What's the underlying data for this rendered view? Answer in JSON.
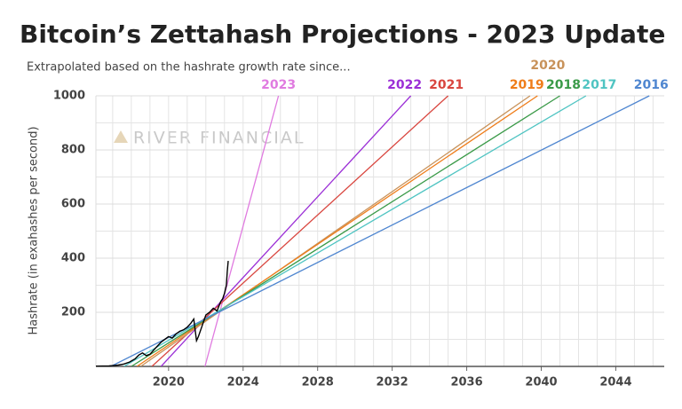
{
  "chart_data": {
    "type": "line",
    "title": "Bitcoin’s Zettahash Projections - 2023 Update",
    "subtitle": "Extrapolated based on the hashrate growth rate since...",
    "y_label": "Hashrate (in exahashes per second)",
    "watermark": "RIVER FINANCIAL",
    "xlim": [
      2016.1,
      2046.6
    ],
    "xticks": [
      2020,
      2024,
      2028,
      2032,
      2036,
      2040,
      2044
    ],
    "ylim": [
      0,
      1000
    ],
    "yticks": [
      200,
      400,
      600,
      800,
      1000
    ],
    "grid": true,
    "minor_grid": {
      "x": 1,
      "y": 100
    },
    "series": [
      {
        "name": "2023",
        "color": "#e07be0",
        "x": [
          2021.95,
          2025.9
        ],
        "values": [
          0,
          1000
        ]
      },
      {
        "name": "2022",
        "color": "#9b2fd6",
        "x": [
          2019.6,
          2033.0
        ],
        "values": [
          0,
          1000
        ]
      },
      {
        "name": "2021",
        "color": "#d9463f",
        "x": [
          2019.1,
          2035.0
        ],
        "values": [
          0,
          1000
        ]
      },
      {
        "name": "2020",
        "color": "#c8925a",
        "x": [
          2018.5,
          2039.4
        ],
        "values": [
          0,
          1000
        ]
      },
      {
        "name": "2019",
        "color": "#ef7d1a",
        "x": [
          2018.3,
          2039.8
        ],
        "values": [
          0,
          1000
        ]
      },
      {
        "name": "2018",
        "color": "#3a9a48",
        "x": [
          2018.0,
          2041.0
        ],
        "values": [
          0,
          1000
        ]
      },
      {
        "name": "2017",
        "color": "#4fc4c2",
        "x": [
          2017.6,
          2042.4
        ],
        "values": [
          0,
          1000
        ]
      },
      {
        "name": "2016",
        "color": "#4f86d0",
        "x": [
          2016.9,
          2045.8
        ],
        "values": [
          0,
          1000
        ]
      },
      {
        "color": "#000000",
        "x": [
          2016.1,
          2016.8,
          2017.3,
          2017.6,
          2017.9,
          2018.2,
          2018.4,
          2018.6,
          2018.8,
          2019.0,
          2019.2,
          2019.4,
          2019.6,
          2019.8,
          2020.0,
          2020.2,
          2020.4,
          2020.6,
          2020.8,
          2021.0,
          2021.2,
          2021.35,
          2021.5,
          2021.6,
          2021.8,
          2022.0,
          2022.2,
          2022.4,
          2022.6,
          2022.8,
          2022.9,
          2023.0,
          2023.1,
          2023.15,
          2023.2
        ],
        "values": [
          1,
          2,
          5,
          9,
          16,
          28,
          42,
          50,
          40,
          45,
          60,
          75,
          90,
          100,
          110,
          105,
          120,
          130,
          135,
          145,
          160,
          175,
          95,
          110,
          150,
          190,
          200,
          215,
          205,
          240,
          250,
          270,
          300,
          350,
          390
        ]
      }
    ]
  }
}
